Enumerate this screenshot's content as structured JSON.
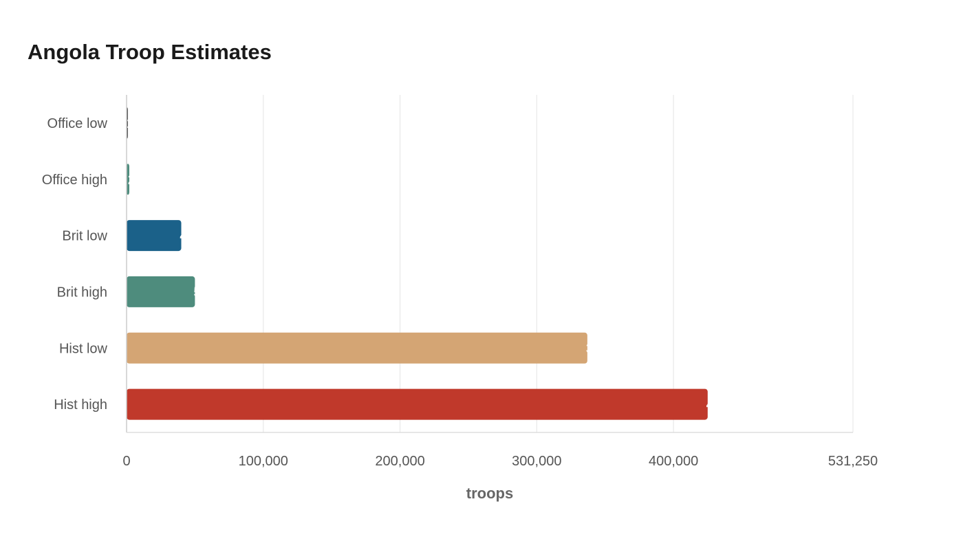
{
  "chart_data": {
    "type": "bar",
    "orientation": "horizontal",
    "title": "Angola Troop Estimates",
    "xlabel": "troops",
    "ylabel": "",
    "categories": [
      "Office low",
      "Office high",
      "Brit low",
      "Brit high",
      "Hist low",
      "Hist high"
    ],
    "values": [
      1000,
      2000,
      40000,
      50000,
      337000,
      425000
    ],
    "colors": [
      "#555555",
      "#4e8c7d",
      "#1b6189",
      "#4e8c7d",
      "#d4a574",
      "#c0392b"
    ],
    "xlim": [
      0,
      531250
    ],
    "xticks": [
      {
        "value": 0,
        "label": "0"
      },
      {
        "value": 100000,
        "label": "100,000"
      },
      {
        "value": 200000,
        "label": "200,000"
      },
      {
        "value": 300000,
        "label": "300,000"
      },
      {
        "value": 400000,
        "label": "400,000"
      },
      {
        "value": 531250,
        "label": "531,250"
      }
    ],
    "bar_label_chars": [
      "1",
      "2",
      "4",
      "5",
      "3",
      "4"
    ],
    "grid": true
  }
}
